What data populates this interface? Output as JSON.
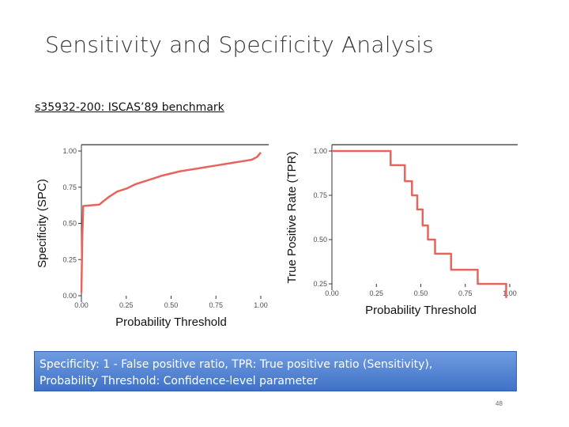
{
  "slide": {
    "title": "Sensitivity and Specificity Analysis",
    "subtitle": "s35932-200: ISCAS’89 benchmark",
    "caption_line1": "Specificity: 1 - False positive ratio, TPR: True positive ratio (Sensitivity),",
    "caption_line2": "Probability Threshold: Confidence-level parameter",
    "page_number": "48"
  },
  "colors": {
    "line": "#e8635c",
    "axis_text": "#4d4d4d",
    "caption_bg": "#4a7fd2"
  },
  "chart_data": [
    {
      "type": "line",
      "xlabel": "Probability Threshold",
      "ylabel": "Specificity (SPC)",
      "xlim": [
        0,
        1
      ],
      "ylim": [
        0,
        1
      ],
      "xticks": [
        "0.00",
        "0.25",
        "0.50",
        "0.75",
        "1.00"
      ],
      "yticks": [
        "0.00",
        "0.25",
        "0.50",
        "0.75",
        "1.00"
      ],
      "series": [
        {
          "x": [
            0.0,
            0.005,
            0.01,
            0.1,
            0.12,
            0.15,
            0.2,
            0.25,
            0.3,
            0.35,
            0.4,
            0.45,
            0.5,
            0.55,
            0.6,
            0.65,
            0.7,
            0.75,
            0.8,
            0.85,
            0.9,
            0.95,
            0.98,
            1.0
          ],
          "y": [
            0.02,
            0.4,
            0.62,
            0.63,
            0.65,
            0.68,
            0.72,
            0.74,
            0.77,
            0.79,
            0.81,
            0.83,
            0.845,
            0.86,
            0.87,
            0.88,
            0.89,
            0.9,
            0.91,
            0.92,
            0.93,
            0.94,
            0.96,
            0.99
          ]
        }
      ]
    },
    {
      "type": "line",
      "xlabel": "Probability Threshold",
      "ylabel": "True Positive Rate (TPR)",
      "xlim": [
        0,
        1
      ],
      "ylim": [
        0.25,
        1
      ],
      "xticks": [
        "0.00",
        "0.25",
        "0.50",
        "0.75",
        "1.00"
      ],
      "yticks": [
        "0.25",
        "0.50",
        "0.75",
        "1.00"
      ],
      "series": [
        {
          "x": [
            0.0,
            0.33,
            0.33,
            0.41,
            0.41,
            0.45,
            0.45,
            0.48,
            0.48,
            0.51,
            0.51,
            0.54,
            0.54,
            0.58,
            0.58,
            0.67,
            0.67,
            0.82,
            0.82,
            0.98,
            0.98
          ],
          "y": [
            1.0,
            1.0,
            0.92,
            0.92,
            0.83,
            0.83,
            0.75,
            0.75,
            0.67,
            0.67,
            0.58,
            0.58,
            0.5,
            0.5,
            0.42,
            0.42,
            0.33,
            0.33,
            0.25,
            0.25,
            0.17
          ]
        }
      ]
    }
  ]
}
